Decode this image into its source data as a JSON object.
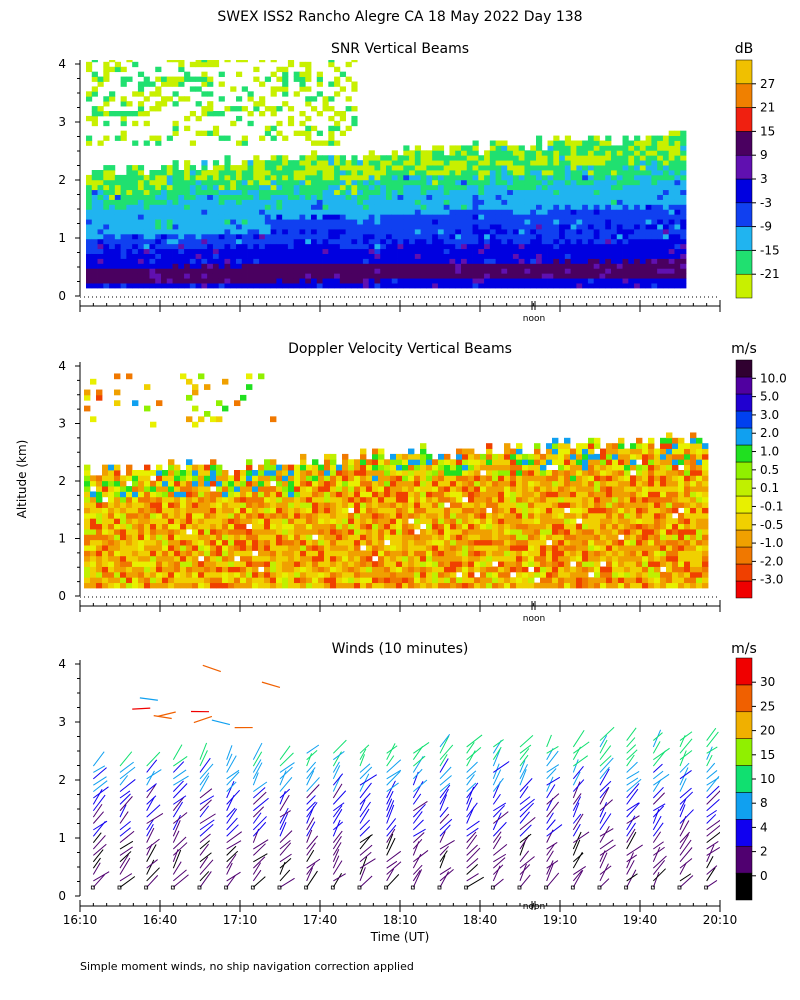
{
  "figure_title": "SWEX ISS2 Rancho Alegre CA  18 May 2022 Day 138",
  "footnote": "Simple moment winds, no ship navigation correction applied",
  "noon_label": "noon",
  "shared_ylabel": "Altitude (km)",
  "colors": {
    "snr": [
      "#c8f000",
      "#20e070",
      "#20b4f0",
      "#1040f0",
      "#0000e0",
      "#6010b0",
      "#4a0060",
      "#f02010",
      "#f08000",
      "#f0c000"
    ],
    "velocity": [
      "#f00000",
      "#f04000",
      "#f07800",
      "#f0a000",
      "#f0d000",
      "#e8f000",
      "#c0f000",
      "#90f000",
      "#20e020",
      "#10a0f0",
      "#0040f0",
      "#2000d0",
      "#5000a0",
      "#300030"
    ],
    "winds": [
      "#000000",
      "#500070",
      "#1000f0",
      "#10a0f0",
      "#10e070",
      "#90f000",
      "#f0b000",
      "#f06000",
      "#f00000"
    ]
  },
  "chart_data": [
    {
      "type": "heatmap",
      "title": "SNR Vertical Beams",
      "xlabel": "",
      "ylabel": "Altitude (km)",
      "xlim": [
        "16:10",
        "20:10"
      ],
      "ylim": [
        0,
        4
      ],
      "yticks": [
        "0",
        "1",
        "2",
        "3",
        "4"
      ],
      "colorbar_unit": "dB",
      "colorbar_labels": [
        "-21",
        "-15",
        "-9",
        "-3",
        "3",
        "9",
        "15",
        "21",
        "27"
      ],
      "description_of_field": "Strong returns (3 to 15 dB) in layers below 1.5 km, weakening to -21 dB near 2.5 km top, sparse echoes 2.5-4 km early in period"
    },
    {
      "type": "heatmap",
      "title": "Doppler Velocity Vertical Beams",
      "xlabel": "",
      "ylabel": "Altitude (km)",
      "xlim": [
        "16:10",
        "20:10"
      ],
      "ylim": [
        0,
        4
      ],
      "yticks": [
        "0",
        "1",
        "2",
        "3",
        "4"
      ],
      "colorbar_unit": "m/s",
      "colorbar_labels": [
        "-3.0",
        "-2.0",
        "-1.0",
        "-0.5",
        "-0.1",
        "0.1",
        "0.5",
        "1.0",
        "2.0",
        "3.0",
        "5.0",
        "10.0"
      ],
      "description_of_field": "Mostly -0.1 to -1.0 m/s below ~2 km with patches of 0.1 to 2.0 m/s near the layer top"
    },
    {
      "type": "scatter",
      "title": "Winds (10 minutes)",
      "xlabel": "Time (UT)",
      "ylabel": "Altitude (km)",
      "xlim": [
        "16:10",
        "20:10"
      ],
      "ylim": [
        0,
        4
      ],
      "yticks": [
        "0",
        "1",
        "2",
        "3",
        "4"
      ],
      "xticks": [
        "16:10",
        "16:40",
        "17:10",
        "17:40",
        "18:10",
        "18:40",
        "19:10",
        "19:40",
        "20:10"
      ],
      "colorbar_unit": "m/s",
      "colorbar_labels": [
        "0",
        "2",
        "4",
        "8",
        "10",
        "15",
        "20",
        "25",
        "30"
      ],
      "profiles": 24,
      "description_of_field": "Wind barbs every 10 minutes, mostly 2-8 m/s below 2.5 km, 10-20 m/s near 2-3 km, up to ~30 m/s near 3.5-4 km early"
    }
  ]
}
